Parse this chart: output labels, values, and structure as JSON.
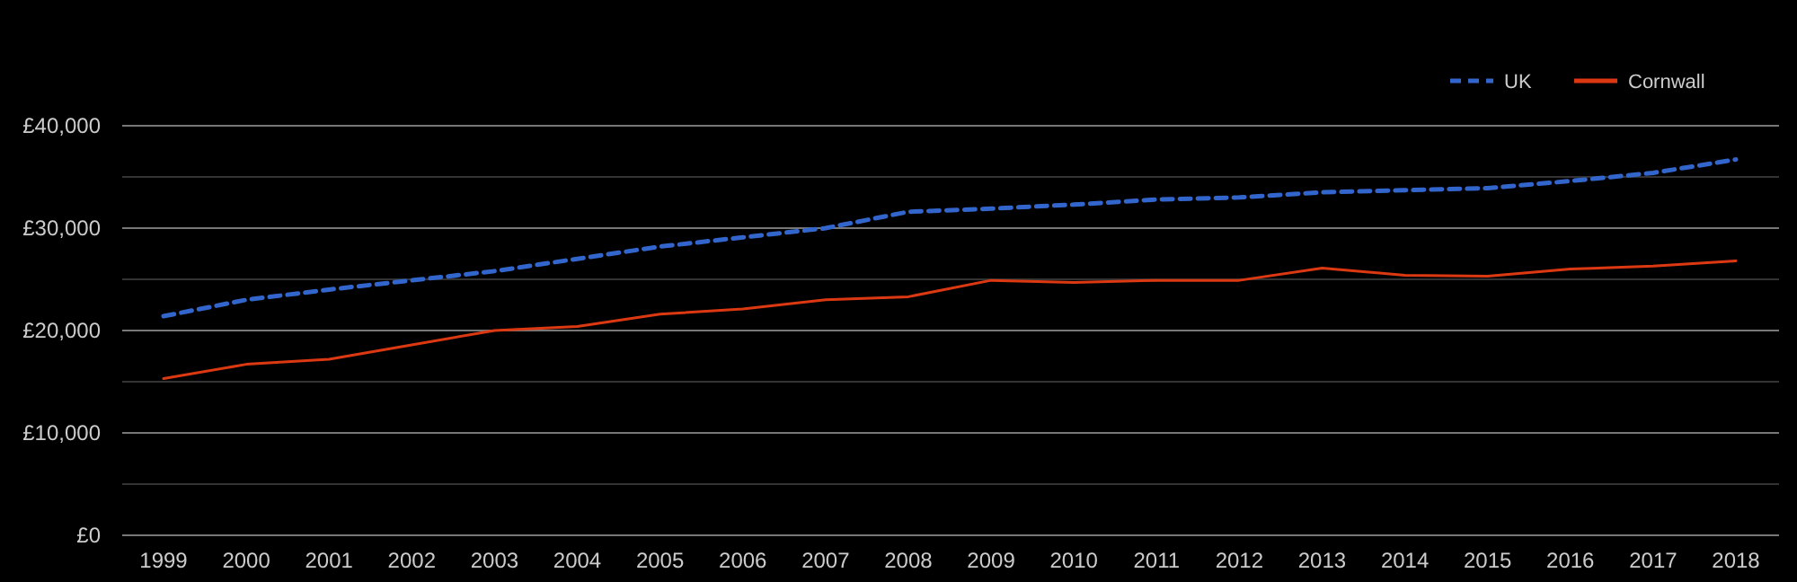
{
  "chart_data": {
    "type": "line",
    "categories": [
      "1999",
      "2000",
      "2001",
      "2002",
      "2003",
      "2004",
      "2005",
      "2006",
      "2007",
      "2008",
      "2009",
      "2010",
      "2011",
      "2012",
      "2013",
      "2014",
      "2015",
      "2016",
      "2017",
      "2018"
    ],
    "series": [
      {
        "name": "UK",
        "color": "#3366cc",
        "line_style": "dashed",
        "values": [
          21400,
          23000,
          24000,
          24900,
          25800,
          27000,
          28200,
          29100,
          30000,
          31600,
          31900,
          32300,
          32800,
          33000,
          33500,
          33700,
          33900,
          34600,
          35400,
          36700
        ]
      },
      {
        "name": "Cornwall",
        "color": "#dc3912",
        "line_style": "solid",
        "values": [
          15300,
          16700,
          17200,
          18600,
          20000,
          20400,
          21600,
          22100,
          23000,
          23300,
          24900,
          24700,
          24900,
          24900,
          26100,
          25400,
          25300,
          26000,
          26300,
          26800
        ]
      }
    ],
    "ylim": [
      0,
      40000
    ],
    "yticks": [
      {
        "value": 0,
        "label": "£0"
      },
      {
        "value": 5000,
        "label": null
      },
      {
        "value": 10000,
        "label": "£10,000"
      },
      {
        "value": 15000,
        "label": null
      },
      {
        "value": 20000,
        "label": "£20,000"
      },
      {
        "value": 25000,
        "label": null
      },
      {
        "value": 30000,
        "label": "£30,000"
      },
      {
        "value": 35000,
        "label": null
      },
      {
        "value": 40000,
        "label": "£40,000"
      }
    ],
    "grid": "y",
    "legend": "top right",
    "marker": "none"
  }
}
